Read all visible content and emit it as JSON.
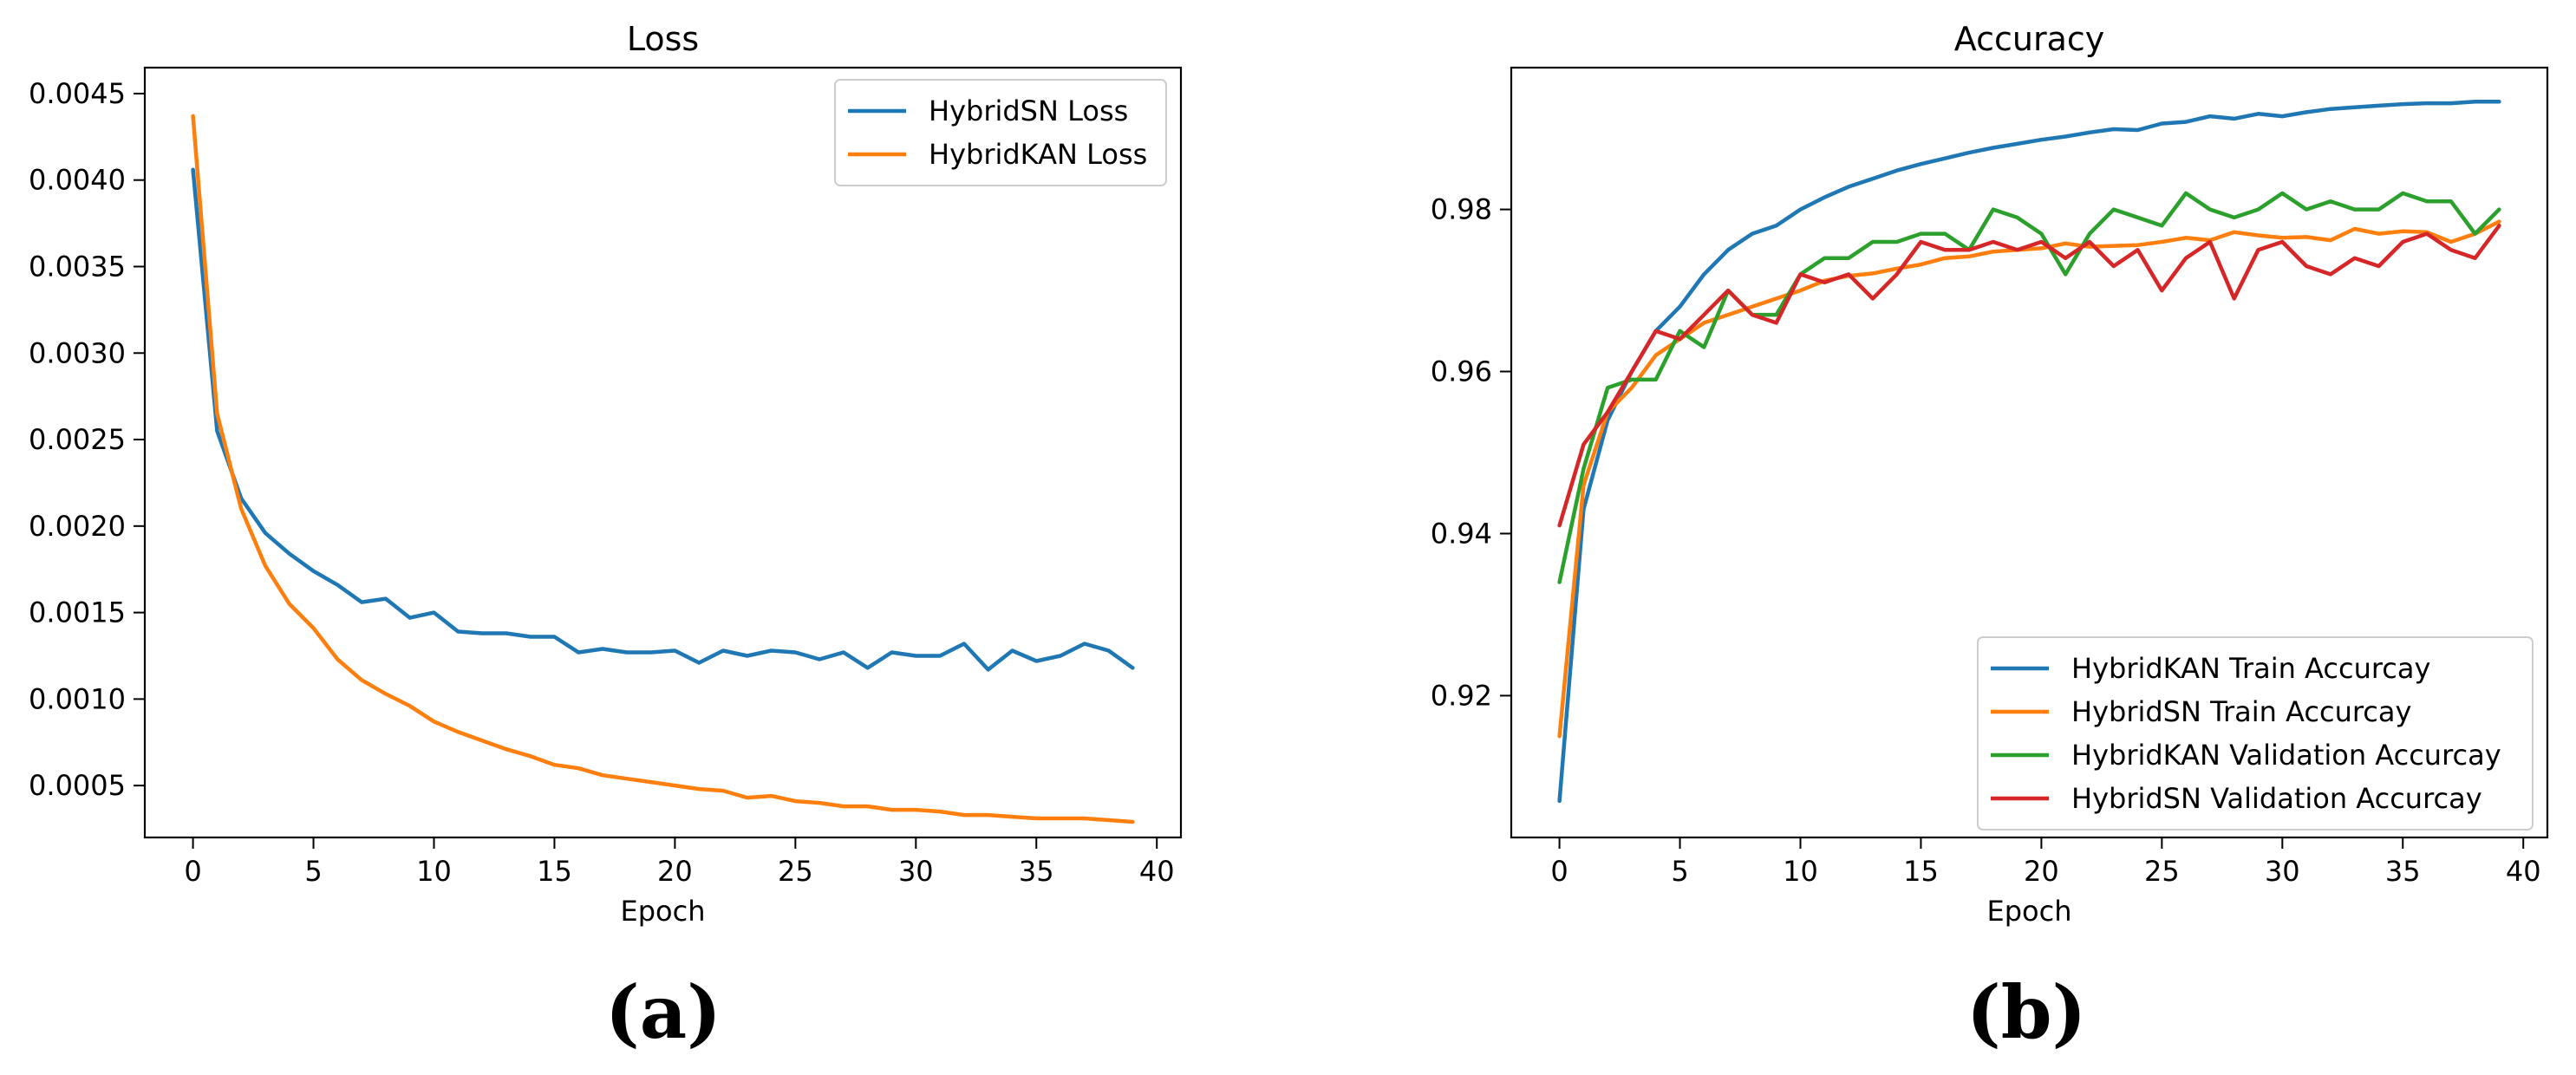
{
  "chart_data": [
    {
      "type": "line",
      "title": "Loss",
      "xlabel": "Epoch",
      "ylabel": "",
      "xlim": [
        -2,
        41
      ],
      "ylim": [
        0.0002,
        0.00465
      ],
      "xticks": [
        0,
        5,
        10,
        15,
        20,
        25,
        30,
        35,
        40
      ],
      "xtick_labels": [
        "0",
        "5",
        "10",
        "15",
        "20",
        "25",
        "30",
        "35",
        "40"
      ],
      "yticks": [
        0.0005,
        0.001,
        0.0015,
        0.002,
        0.0025,
        0.003,
        0.0035,
        0.004,
        0.0045
      ],
      "ytick_labels": [
        "0.0005",
        "0.0010",
        "0.0015",
        "0.0020",
        "0.0025",
        "0.0030",
        "0.0035",
        "0.0040",
        "0.0045"
      ],
      "legend_position": "top-right",
      "series": [
        {
          "name": "HybridSN Loss",
          "color": "#1f77b4",
          "x": [
            0,
            1,
            2,
            3,
            4,
            5,
            6,
            7,
            8,
            9,
            10,
            11,
            12,
            13,
            14,
            15,
            16,
            17,
            18,
            19,
            20,
            21,
            22,
            23,
            24,
            25,
            26,
            27,
            28,
            29,
            30,
            31,
            32,
            33,
            34,
            35,
            36,
            37,
            38,
            39
          ],
          "values": [
            0.00406,
            0.00255,
            0.00216,
            0.00196,
            0.00184,
            0.00174,
            0.00166,
            0.00156,
            0.00158,
            0.00147,
            0.0015,
            0.00139,
            0.00138,
            0.00138,
            0.00136,
            0.00136,
            0.00127,
            0.00129,
            0.00127,
            0.00127,
            0.00128,
            0.00121,
            0.00128,
            0.00125,
            0.00128,
            0.00127,
            0.00123,
            0.00127,
            0.00118,
            0.00127,
            0.00125,
            0.00125,
            0.00132,
            0.00117,
            0.00128,
            0.00122,
            0.00125,
            0.00132,
            0.00128,
            0.00118
          ]
        },
        {
          "name": "HybridKAN Loss",
          "color": "#ff7f0e",
          "x": [
            0,
            1,
            2,
            3,
            4,
            5,
            6,
            7,
            8,
            9,
            10,
            11,
            12,
            13,
            14,
            15,
            16,
            17,
            18,
            19,
            20,
            21,
            22,
            23,
            24,
            25,
            26,
            27,
            28,
            29,
            30,
            31,
            32,
            33,
            34,
            35,
            36,
            37,
            38,
            39
          ],
          "values": [
            0.00437,
            0.00265,
            0.0021,
            0.00177,
            0.00155,
            0.00141,
            0.00123,
            0.00111,
            0.00103,
            0.00096,
            0.00087,
            0.00081,
            0.00076,
            0.00071,
            0.00067,
            0.00062,
            0.0006,
            0.00056,
            0.00054,
            0.00052,
            0.0005,
            0.00048,
            0.00047,
            0.00043,
            0.00044,
            0.00041,
            0.0004,
            0.00038,
            0.00038,
            0.00036,
            0.00036,
            0.00035,
            0.00033,
            0.00033,
            0.00032,
            0.00031,
            0.00031,
            0.00031,
            0.0003,
            0.00029
          ]
        }
      ]
    },
    {
      "type": "line",
      "title": "Accuracy",
      "xlabel": "Epoch",
      "ylabel": "",
      "xlim": [
        -2,
        41
      ],
      "ylim": [
        0.9025,
        0.9975
      ],
      "xticks": [
        0,
        5,
        10,
        15,
        20,
        25,
        30,
        35,
        40
      ],
      "xtick_labels": [
        "0",
        "5",
        "10",
        "15",
        "20",
        "25",
        "30",
        "35",
        "40"
      ],
      "yticks": [
        0.92,
        0.94,
        0.96,
        0.98
      ],
      "ytick_labels": [
        "0.92",
        "0.94",
        "0.96",
        "0.98"
      ],
      "legend_position": "bottom-right",
      "series": [
        {
          "name": "HybridKAN Train Accurcay",
          "color": "#1f77b4",
          "x": [
            0,
            1,
            2,
            3,
            4,
            5,
            6,
            7,
            8,
            9,
            10,
            11,
            12,
            13,
            14,
            15,
            16,
            17,
            18,
            19,
            20,
            21,
            22,
            23,
            24,
            25,
            26,
            27,
            28,
            29,
            30,
            31,
            32,
            33,
            34,
            35,
            36,
            37,
            38,
            39
          ],
          "values": [
            0.907,
            0.943,
            0.954,
            0.96,
            0.965,
            0.968,
            0.972,
            0.975,
            0.977,
            0.978,
            0.98,
            0.9815,
            0.9828,
            0.9838,
            0.9848,
            0.9856,
            0.9863,
            0.987,
            0.9876,
            0.9881,
            0.9886,
            0.989,
            0.9895,
            0.9899,
            0.9898,
            0.9906,
            0.9908,
            0.9915,
            0.9912,
            0.9918,
            0.9915,
            0.992,
            0.9924,
            0.9926,
            0.9928,
            0.993,
            0.9931,
            0.9931,
            0.9933,
            0.9933
          ]
        },
        {
          "name": "HybridSN Train Accurcay",
          "color": "#ff7f0e",
          "x": [
            0,
            1,
            2,
            3,
            4,
            5,
            6,
            7,
            8,
            9,
            10,
            11,
            12,
            13,
            14,
            15,
            16,
            17,
            18,
            19,
            20,
            21,
            22,
            23,
            24,
            25,
            26,
            27,
            28,
            29,
            30,
            31,
            32,
            33,
            34,
            35,
            36,
            37,
            38,
            39
          ],
          "values": [
            0.915,
            0.946,
            0.955,
            0.958,
            0.962,
            0.964,
            0.966,
            0.967,
            0.968,
            0.969,
            0.97,
            0.9712,
            0.9718,
            0.9721,
            0.9727,
            0.9732,
            0.974,
            0.9742,
            0.9748,
            0.975,
            0.9752,
            0.9758,
            0.9754,
            0.9755,
            0.9756,
            0.976,
            0.9765,
            0.9762,
            0.9772,
            0.9768,
            0.9765,
            0.9766,
            0.9762,
            0.9776,
            0.977,
            0.9773,
            0.9772,
            0.976,
            0.977,
            0.9785
          ]
        },
        {
          "name": "HybridKAN Validation Accurcay",
          "color": "#2ca02c",
          "x": [
            0,
            1,
            2,
            3,
            4,
            5,
            6,
            7,
            8,
            9,
            10,
            11,
            12,
            13,
            14,
            15,
            16,
            17,
            18,
            19,
            20,
            21,
            22,
            23,
            24,
            25,
            26,
            27,
            28,
            29,
            30,
            31,
            32,
            33,
            34,
            35,
            36,
            37,
            38,
            39
          ],
          "values": [
            0.934,
            0.948,
            0.958,
            0.959,
            0.959,
            0.965,
            0.963,
            0.97,
            0.967,
            0.967,
            0.972,
            0.974,
            0.974,
            0.976,
            0.976,
            0.977,
            0.977,
            0.975,
            0.98,
            0.979,
            0.977,
            0.972,
            0.977,
            0.98,
            0.979,
            0.978,
            0.982,
            0.98,
            0.979,
            0.98,
            0.982,
            0.98,
            0.981,
            0.98,
            0.98,
            0.982,
            0.981,
            0.981,
            0.977,
            0.98
          ]
        },
        {
          "name": "HybridSN Validation Accurcay",
          "color": "#d62728",
          "x": [
            0,
            1,
            2,
            3,
            4,
            5,
            6,
            7,
            8,
            9,
            10,
            11,
            12,
            13,
            14,
            15,
            16,
            17,
            18,
            19,
            20,
            21,
            22,
            23,
            24,
            25,
            26,
            27,
            28,
            29,
            30,
            31,
            32,
            33,
            34,
            35,
            36,
            37,
            38,
            39
          ],
          "values": [
            0.941,
            0.951,
            0.955,
            0.96,
            0.965,
            0.964,
            0.967,
            0.97,
            0.967,
            0.966,
            0.972,
            0.971,
            0.972,
            0.969,
            0.972,
            0.976,
            0.975,
            0.975,
            0.976,
            0.975,
            0.976,
            0.974,
            0.976,
            0.973,
            0.975,
            0.97,
            0.974,
            0.976,
            0.969,
            0.975,
            0.976,
            0.973,
            0.972,
            0.974,
            0.973,
            0.976,
            0.977,
            0.975,
            0.974,
            0.978
          ]
        }
      ]
    }
  ],
  "panel_labels": [
    "(a)",
    "(b)"
  ]
}
